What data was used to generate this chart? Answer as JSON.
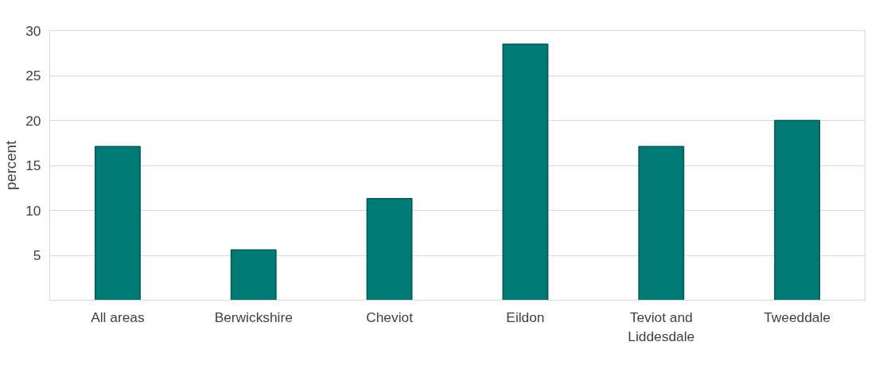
{
  "chart_data": {
    "type": "bar",
    "ylabel": "percent",
    "categories": [
      "All areas",
      "Berwickshire",
      "Cheviot",
      "Eildon",
      "Teviot and Liddesdale",
      "Tweeddale"
    ],
    "values": [
      17.1,
      5.6,
      11.3,
      28.5,
      17.1,
      20.0
    ],
    "color": "#007a74",
    "ylim": [
      0,
      30
    ],
    "yticks": [
      5,
      10,
      15,
      20,
      25,
      30
    ],
    "grid": "y"
  }
}
